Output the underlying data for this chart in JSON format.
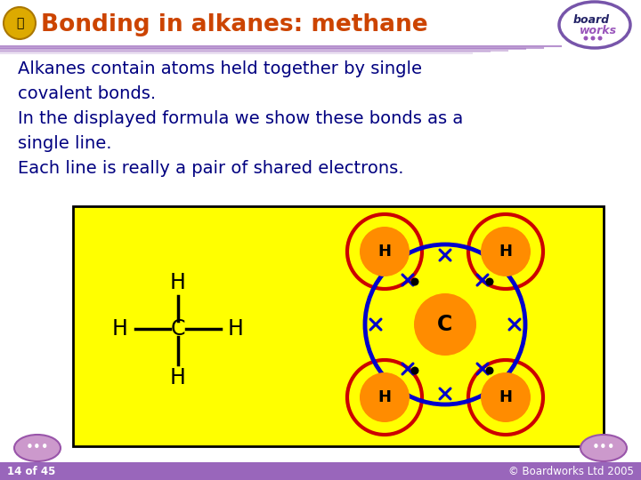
{
  "title": "Bonding in alkanes: methane",
  "title_color": "#CC4400",
  "bg_color": "#ffffff",
  "footer_bg": "#9966BB",
  "footer_text": "14 of 45",
  "footer_right": "© Boardworks Ltd 2005",
  "body_text_lines": [
    "Alkanes contain atoms held together by single",
    "covalent bonds.",
    "In the displayed formula we show these bonds as a",
    "single line.",
    "Each line is really a pair of shared electrons."
  ],
  "body_text_color": "#000080",
  "yellow_box_color": "#FFFF00",
  "yellow_box_border": "#000000",
  "atom_H_color": "#FF8C00",
  "atom_C_color": "#FF8C00",
  "atom_H_ring_color": "#CC0000",
  "atom_C_ring_color": "#0000CC",
  "cross_color": "#0000CC",
  "dot_color": "#000000",
  "purple_line": "#9966BB",
  "nav_button_color": "#CC99CC",
  "nav_button_edge": "#9955AA"
}
